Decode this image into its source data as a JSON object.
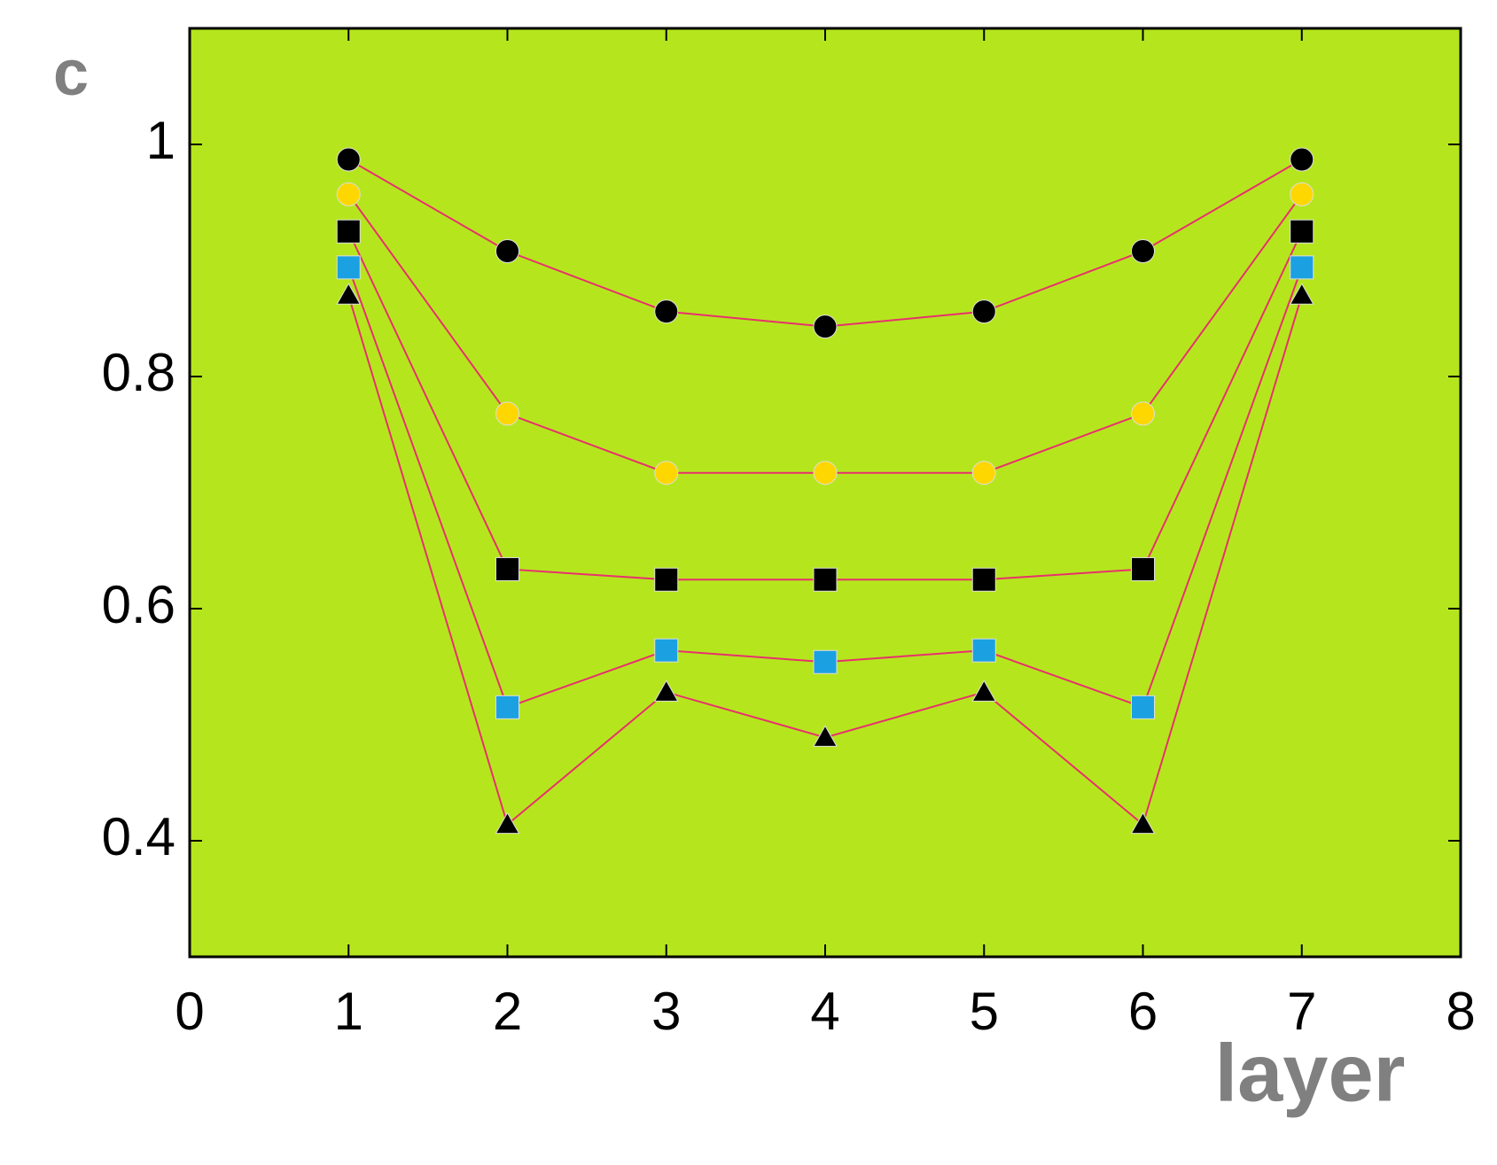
{
  "chart_data": {
    "type": "line",
    "y_label": "c",
    "x_label": "layer",
    "x": [
      1,
      2,
      3,
      4,
      5,
      6,
      7
    ],
    "xlim": [
      0,
      8
    ],
    "xticks": [
      0,
      1,
      2,
      3,
      4,
      5,
      6,
      7,
      8
    ],
    "ylim": [
      0.3,
      1.1
    ],
    "yticks": [
      0.4,
      0.6,
      0.8,
      1
    ],
    "background": "#b5e61d",
    "line_color": "#e8306e",
    "series": [
      {
        "marker": "circle",
        "color": "#000000",
        "values": [
          0.987,
          0.908,
          0.856,
          0.843,
          0.856,
          0.908,
          0.987
        ]
      },
      {
        "marker": "circle",
        "color": "#ffd700",
        "values": [
          0.957,
          0.768,
          0.717,
          0.717,
          0.717,
          0.768,
          0.957
        ]
      },
      {
        "marker": "square",
        "color": "#000000",
        "values": [
          0.925,
          0.634,
          0.625,
          0.625,
          0.625,
          0.634,
          0.925
        ]
      },
      {
        "marker": "square",
        "color": "#1ba1e2",
        "values": [
          0.894,
          0.515,
          0.564,
          0.554,
          0.564,
          0.515,
          0.894
        ]
      },
      {
        "marker": "triangle",
        "color": "#000000",
        "values": [
          0.87,
          0.414,
          0.528,
          0.489,
          0.528,
          0.414,
          0.87
        ]
      }
    ]
  }
}
